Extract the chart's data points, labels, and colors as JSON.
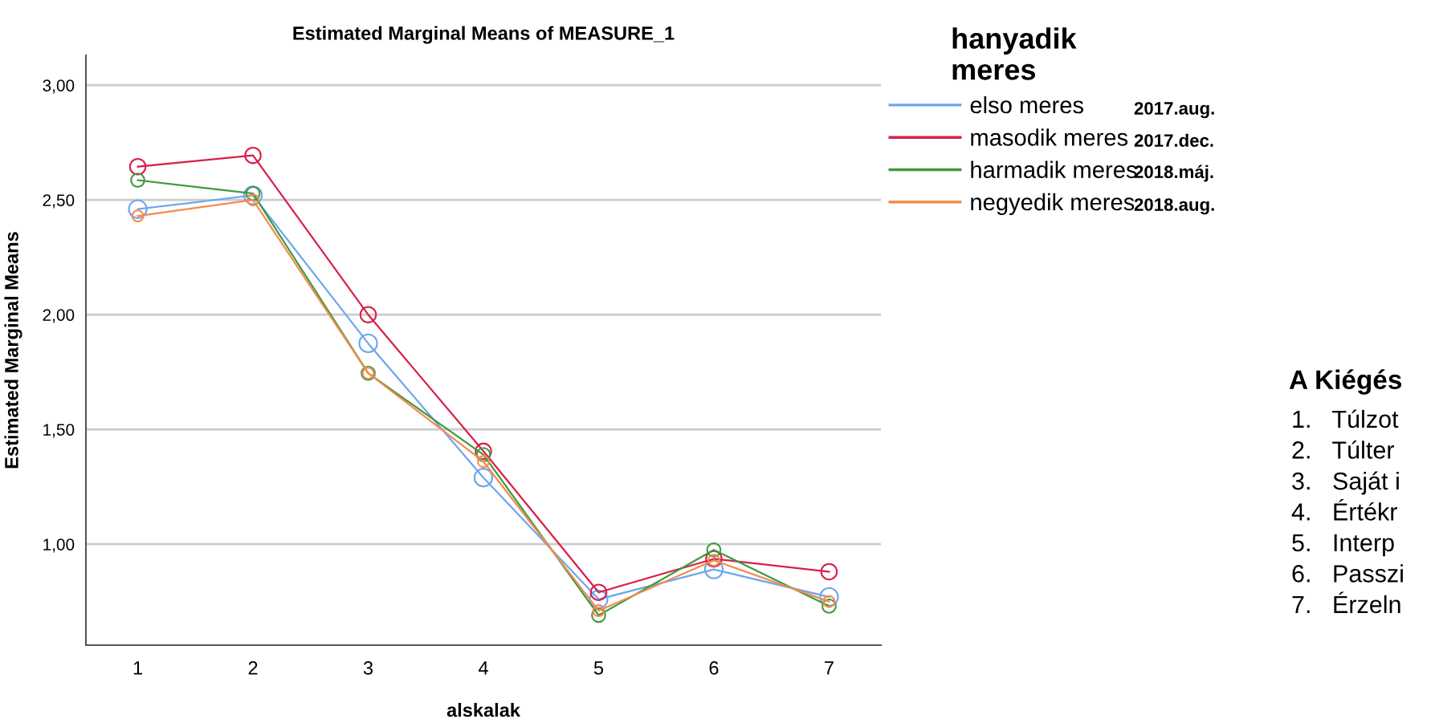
{
  "chart_data": {
    "type": "line",
    "title": "Estimated Marginal Means of MEASURE_1",
    "xlabel": "alskalak",
    "ylabel": "Estimated Marginal Means",
    "legend_title": "hanyadik\nmeres",
    "categories": [
      "1",
      "2",
      "3",
      "4",
      "5",
      "6",
      "7"
    ],
    "series": [
      {
        "name": "elso meres",
        "color": "#6ea6f0",
        "values": [
          2.46,
          2.52,
          1.875,
          1.29,
          0.76,
          0.89,
          0.77
        ]
      },
      {
        "name": "masodik meres",
        "color": "#d8204a",
        "values": [
          2.645,
          2.694,
          2.0,
          1.405,
          0.79,
          0.936,
          0.88
        ]
      },
      {
        "name": "harmadik meres",
        "color": "#3f9a3f",
        "values": [
          2.586,
          2.528,
          1.745,
          1.39,
          0.69,
          0.975,
          0.73
        ]
      },
      {
        "name": "negyedik meres",
        "color": "#f58a4f",
        "values": [
          2.43,
          2.5,
          1.745,
          1.36,
          0.71,
          0.93,
          0.75
        ]
      }
    ],
    "ylim": [
      0.56,
      3.13
    ],
    "yticks": [
      {
        "value": 1,
        "label": "1,00"
      },
      {
        "value": 1.5,
        "label": "1,50"
      },
      {
        "value": 2,
        "label": "2,00"
      },
      {
        "value": 2.5,
        "label": "2,50"
      },
      {
        "value": 3,
        "label": "3,00"
      }
    ],
    "grid": "y",
    "legend": "right",
    "marker": "circle",
    "line_style": "solid",
    "annotations": [
      "2017.aug.",
      "2017.dec.",
      "2018.máj.",
      "2018.aug.",
      "A Kiégés",
      "1.   Túlzot",
      "2.   Túlter",
      "3.   Saját i",
      "4.   Értékr",
      "5.   Interp",
      "6.   Passzi",
      "7.   Érzeln"
    ]
  }
}
